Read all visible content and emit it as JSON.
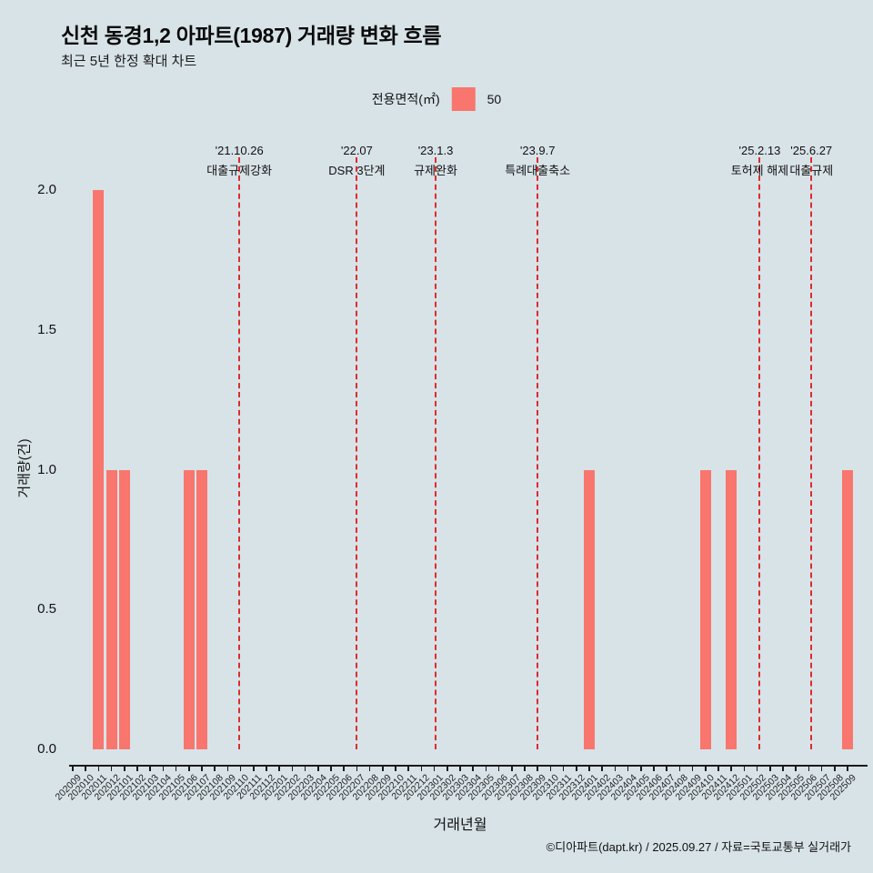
{
  "header": {
    "title": "신천 동경1,2 아파트(1987) 거래량 변화 흐름",
    "subtitle": "최근 5년 한정 확대 차트"
  },
  "legend": {
    "title": "전용면적(㎡)",
    "value": "50"
  },
  "footer": {
    "credit": "©디아파트(dapt.kr) / 2025.09.27 / 자료=국토교통부 실거래가"
  },
  "chart_data": {
    "type": "bar",
    "title": "신천 동경1,2 아파트(1987) 거래량 변화 흐름",
    "subtitle": "최근 5년 한정 확대 차트",
    "xlabel": "거래년월",
    "ylabel": "거래량(건)",
    "ylim": [
      0,
      2
    ],
    "yticks": [
      0.0,
      0.5,
      1.0,
      1.5,
      2.0
    ],
    "grid": false,
    "legend_position": "top-center",
    "series_name": "50",
    "bar_color": "#f8766d",
    "annotation_color": "#dd2c2c",
    "background_color": "#d8e3e8",
    "categories": [
      "202009",
      "202010",
      "202011",
      "202012",
      "202101",
      "202102",
      "202103",
      "202104",
      "202105",
      "202106",
      "202107",
      "202108",
      "202109",
      "202110",
      "202111",
      "202112",
      "202201",
      "202202",
      "202203",
      "202204",
      "202205",
      "202206",
      "202207",
      "202208",
      "202209",
      "202210",
      "202211",
      "202212",
      "202301",
      "202302",
      "202303",
      "202304",
      "202305",
      "202306",
      "202307",
      "202308",
      "202309",
      "202310",
      "202311",
      "202312",
      "202401",
      "202402",
      "202403",
      "202404",
      "202405",
      "202406",
      "202407",
      "202408",
      "202409",
      "202410",
      "202411",
      "202412",
      "202501",
      "202502",
      "202503",
      "202504",
      "202505",
      "202506",
      "202507",
      "202508",
      "202509"
    ],
    "values": [
      0,
      0,
      2,
      1,
      1,
      0,
      0,
      0,
      0,
      1,
      1,
      0,
      0,
      0,
      0,
      0,
      0,
      0,
      0,
      0,
      0,
      0,
      0,
      0,
      0,
      0,
      0,
      0,
      0,
      0,
      0,
      0,
      0,
      0,
      0,
      0,
      0,
      0,
      0,
      0,
      1,
      0,
      0,
      0,
      0,
      0,
      0,
      0,
      0,
      1,
      0,
      1,
      0,
      0,
      0,
      0,
      0,
      0,
      0,
      0,
      1
    ],
    "annotations": [
      {
        "date": "'21.10.26",
        "label": "대출규제강화",
        "month_index": 12.9
      },
      {
        "date": "'22.07",
        "label": "DSR 3단계",
        "month_index": 22.0
      },
      {
        "date": "'23.1.3",
        "label": "규제완화",
        "month_index": 28.1
      },
      {
        "date": "'23.9.7",
        "label": "특례대출축소",
        "month_index": 36.0
      },
      {
        "date": "'25.2.13",
        "label": "토허제 해제",
        "month_index": 53.2
      },
      {
        "date": "'25.6.27",
        "label": "대출규제",
        "month_index": 57.2
      }
    ]
  }
}
